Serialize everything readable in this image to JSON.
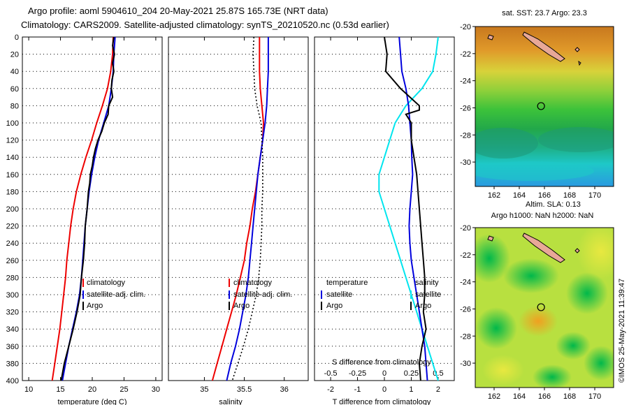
{
  "title_line1": "Argo profile: aoml 5904610_204 20-May-2021 25.87S 165.73E (NRT data)",
  "title_line2": "Climatology: CARS2009. Satellite-adjusted climatology: synTS_20210520.nc (0.53d earlier)",
  "watermark": "©IMOS 25-May-2021 11:39:47",
  "colors": {
    "climatology": "#ee0000",
    "satellite": "#0000dd",
    "argo": "#000000",
    "cyan": "#00e5ee"
  },
  "chart_data": [
    {
      "id": "temperature",
      "type": "line",
      "xlabel": "temperature (deg C)",
      "ylim": [
        400,
        0
      ],
      "xlim": [
        9,
        31
      ],
      "xticks": [
        10,
        15,
        20,
        25,
        30
      ],
      "yticks": [
        0,
        20,
        40,
        60,
        80,
        100,
        120,
        140,
        160,
        180,
        200,
        220,
        240,
        260,
        280,
        300,
        320,
        340,
        360,
        380,
        400
      ],
      "legend": [
        "climatology",
        "satellite-adj. clim.",
        "Argo"
      ],
      "series": [
        {
          "name": "climatology",
          "color": "red",
          "points": [
            [
              23.3,
              0
            ],
            [
              23.2,
              20
            ],
            [
              22.9,
              40
            ],
            [
              22.4,
              60
            ],
            [
              21.6,
              80
            ],
            [
              20.7,
              100
            ],
            [
              19.9,
              120
            ],
            [
              19.0,
              140
            ],
            [
              18.2,
              160
            ],
            [
              17.5,
              180
            ],
            [
              17.0,
              200
            ],
            [
              16.6,
              220
            ],
            [
              16.3,
              240
            ],
            [
              16.0,
              260
            ],
            [
              15.8,
              280
            ],
            [
              15.5,
              300
            ],
            [
              15.2,
              320
            ],
            [
              14.9,
              340
            ],
            [
              14.5,
              360
            ],
            [
              14.1,
              380
            ],
            [
              13.7,
              400
            ]
          ]
        },
        {
          "name": "satellite-adj. clim.",
          "color": "blue",
          "points": [
            [
              23.6,
              0
            ],
            [
              23.4,
              20
            ],
            [
              23.3,
              40
            ],
            [
              23.0,
              60
            ],
            [
              22.6,
              80
            ],
            [
              21.8,
              100
            ],
            [
              21.0,
              120
            ],
            [
              20.4,
              140
            ],
            [
              19.9,
              160
            ],
            [
              19.5,
              180
            ],
            [
              19.2,
              200
            ],
            [
              18.9,
              220
            ],
            [
              18.7,
              240
            ],
            [
              18.5,
              260
            ],
            [
              18.3,
              280
            ],
            [
              18.0,
              300
            ],
            [
              17.5,
              320
            ],
            [
              16.9,
              340
            ],
            [
              16.3,
              360
            ],
            [
              15.8,
              380
            ],
            [
              15.3,
              400
            ]
          ]
        },
        {
          "name": "Argo",
          "color": "black",
          "points": [
            [
              23.4,
              0
            ],
            [
              23.2,
              10
            ],
            [
              23.5,
              20
            ],
            [
              23.2,
              30
            ],
            [
              23.4,
              40
            ],
            [
              23.1,
              50
            ],
            [
              23.0,
              60
            ],
            [
              23.2,
              70
            ],
            [
              22.6,
              80
            ],
            [
              22.5,
              90
            ],
            [
              21.9,
              100
            ],
            [
              21.5,
              110
            ],
            [
              20.9,
              120
            ],
            [
              20.5,
              130
            ],
            [
              20.2,
              140
            ],
            [
              20.0,
              150
            ],
            [
              19.7,
              160
            ],
            [
              19.6,
              170
            ],
            [
              19.4,
              180
            ],
            [
              19.2,
              200
            ],
            [
              18.9,
              220
            ],
            [
              18.8,
              240
            ],
            [
              18.6,
              260
            ],
            [
              18.3,
              280
            ],
            [
              18.1,
              300
            ],
            [
              17.6,
              320
            ],
            [
              17.0,
              340
            ],
            [
              16.3,
              360
            ],
            [
              15.6,
              380
            ],
            [
              15.1,
              400
            ]
          ]
        }
      ]
    },
    {
      "id": "salinity",
      "type": "line",
      "xlabel": "salinity",
      "ylim": [
        400,
        0
      ],
      "xlim": [
        34.55,
        36.3
      ],
      "xticks": [
        35,
        35.5,
        36
      ],
      "legend": [
        "climatology",
        "satellite-adj. clim.",
        "Argo"
      ],
      "series": [
        {
          "name": "climatology",
          "color": "red",
          "points": [
            [
              35.69,
              0
            ],
            [
              35.69,
              20
            ],
            [
              35.69,
              40
            ],
            [
              35.7,
              60
            ],
            [
              35.72,
              80
            ],
            [
              35.74,
              100
            ],
            [
              35.73,
              120
            ],
            [
              35.7,
              140
            ],
            [
              35.67,
              160
            ],
            [
              35.64,
              180
            ],
            [
              35.6,
              200
            ],
            [
              35.57,
              220
            ],
            [
              35.53,
              240
            ],
            [
              35.5,
              260
            ],
            [
              35.45,
              280
            ],
            [
              35.4,
              300
            ],
            [
              35.34,
              320
            ],
            [
              35.28,
              340
            ],
            [
              35.22,
              360
            ],
            [
              35.16,
              380
            ],
            [
              35.1,
              400
            ]
          ]
        },
        {
          "name": "satellite-adj. clim.",
          "color": "blue",
          "points": [
            [
              35.8,
              0
            ],
            [
              35.8,
              20
            ],
            [
              35.8,
              40
            ],
            [
              35.79,
              60
            ],
            [
              35.78,
              80
            ],
            [
              35.76,
              100
            ],
            [
              35.73,
              120
            ],
            [
              35.7,
              140
            ],
            [
              35.67,
              160
            ],
            [
              35.65,
              180
            ],
            [
              35.63,
              200
            ],
            [
              35.61,
              220
            ],
            [
              35.59,
              240
            ],
            [
              35.57,
              260
            ],
            [
              35.55,
              280
            ],
            [
              35.52,
              300
            ],
            [
              35.48,
              320
            ],
            [
              35.44,
              340
            ],
            [
              35.39,
              360
            ],
            [
              35.33,
              380
            ],
            [
              35.28,
              400
            ]
          ]
        },
        {
          "name": "Argo",
          "color": "black",
          "dash": "dotted",
          "points": [
            [
              35.62,
              0
            ],
            [
              35.61,
              20
            ],
            [
              35.62,
              40
            ],
            [
              35.63,
              60
            ],
            [
              35.66,
              80
            ],
            [
              35.71,
              100
            ],
            [
              35.72,
              120
            ],
            [
              35.73,
              140
            ],
            [
              35.73,
              160
            ],
            [
              35.73,
              180
            ],
            [
              35.72,
              200
            ],
            [
              35.72,
              220
            ],
            [
              35.71,
              240
            ],
            [
              35.7,
              260
            ],
            [
              35.68,
              280
            ],
            [
              35.65,
              300
            ],
            [
              35.6,
              320
            ],
            [
              35.55,
              340
            ],
            [
              35.49,
              360
            ],
            [
              35.42,
              380
            ],
            [
              35.35,
              400
            ]
          ]
        }
      ]
    },
    {
      "id": "difference",
      "type": "line",
      "xlabel": "T difference from climatology",
      "top_label": "S difference from climatology",
      "ylim": [
        400,
        0
      ],
      "xlim": [
        -2.6,
        2.6
      ],
      "xticks": [
        -2,
        -1,
        0,
        1,
        2
      ],
      "top_ticks": [
        -0.5,
        -0.25,
        0,
        0.25,
        0.5
      ],
      "legend_left_title": "temperature",
      "legend_right_title": "salinity",
      "legend": [
        "satellite",
        "Argo"
      ],
      "series": [
        {
          "name": "S satellite",
          "color": "cyan",
          "points": [
            [
              0.5,
              0
            ],
            [
              0.48,
              20
            ],
            [
              0.45,
              40
            ],
            [
              0.35,
              60
            ],
            [
              0.2,
              80
            ],
            [
              0.1,
              100
            ],
            [
              0.05,
              120
            ],
            [
              0.0,
              140
            ],
            [
              -0.05,
              160
            ],
            [
              -0.05,
              180
            ],
            [
              0.0,
              200
            ],
            [
              0.05,
              220
            ],
            [
              0.1,
              240
            ],
            [
              0.15,
              260
            ],
            [
              0.2,
              280
            ],
            [
              0.25,
              300
            ],
            [
              0.3,
              320
            ],
            [
              0.35,
              340
            ],
            [
              0.4,
              360
            ],
            [
              0.45,
              380
            ],
            [
              0.5,
              400
            ]
          ]
        },
        {
          "name": "T satellite",
          "color": "blue",
          "points": [
            [
              0.55,
              0
            ],
            [
              0.6,
              20
            ],
            [
              0.65,
              40
            ],
            [
              0.8,
              60
            ],
            [
              0.9,
              80
            ],
            [
              0.95,
              100
            ],
            [
              1.0,
              120
            ],
            [
              1.02,
              140
            ],
            [
              1.05,
              160
            ],
            [
              1.0,
              180
            ],
            [
              0.95,
              200
            ],
            [
              0.92,
              220
            ],
            [
              0.95,
              240
            ],
            [
              1.0,
              260
            ],
            [
              1.1,
              280
            ],
            [
              1.2,
              300
            ],
            [
              1.3,
              320
            ],
            [
              1.4,
              340
            ],
            [
              1.5,
              360
            ],
            [
              1.55,
              380
            ],
            [
              1.6,
              400
            ]
          ]
        },
        {
          "name": "T Argo",
          "color": "black",
          "points": [
            [
              0.0,
              0
            ],
            [
              0.1,
              20
            ],
            [
              0.05,
              40
            ],
            [
              0.6,
              60
            ],
            [
              1.3,
              80
            ],
            [
              1.3,
              85
            ],
            [
              0.8,
              90
            ],
            [
              1.0,
              100
            ],
            [
              1.0,
              120
            ],
            [
              1.1,
              140
            ],
            [
              1.2,
              160
            ],
            [
              1.25,
              180
            ],
            [
              1.3,
              200
            ],
            [
              1.35,
              220
            ],
            [
              1.4,
              240
            ],
            [
              1.45,
              260
            ],
            [
              1.5,
              280
            ],
            [
              1.5,
              300
            ],
            [
              1.45,
              320
            ],
            [
              1.55,
              340
            ],
            [
              1.4,
              360
            ],
            [
              1.3,
              380
            ],
            [
              1.35,
              400
            ]
          ]
        }
      ]
    },
    {
      "id": "map_sst",
      "type": "heatmap",
      "title": "sat. SST: 23.7 Argo: 23.3",
      "xlim": [
        160.5,
        171.5
      ],
      "ylim": [
        -31.8,
        -20
      ],
      "xticks": [
        162,
        164,
        166,
        168,
        170
      ],
      "yticks": [
        -20,
        -22,
        -24,
        -26,
        -28,
        -30
      ],
      "profile_marker": [
        165.73,
        -25.87
      ],
      "footer": "Altim. SLA: 0.13"
    },
    {
      "id": "map_sla",
      "type": "heatmap",
      "title": "Argo h1000: NaN h2000: NaN",
      "xlim": [
        160.5,
        171.5
      ],
      "ylim": [
        -31.8,
        -20
      ],
      "xticks": [
        162,
        164,
        166,
        168,
        170
      ],
      "yticks": [
        -20,
        -22,
        -24,
        -26,
        -28,
        -30
      ],
      "profile_marker": [
        165.73,
        -25.87
      ]
    }
  ]
}
